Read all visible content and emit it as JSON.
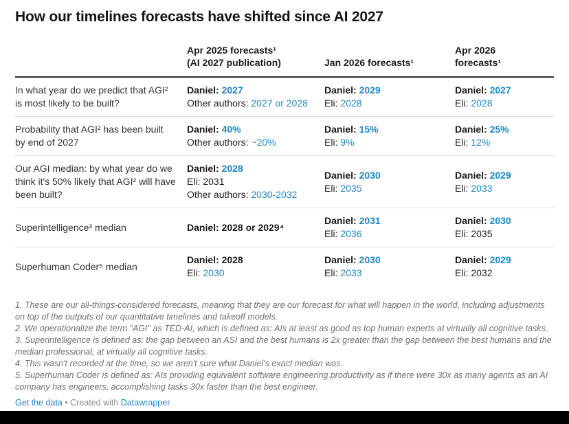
{
  "title": "How our timelines forecasts have shifted since AI 2027",
  "colors": {
    "accent_blue": "#1e87c4",
    "text_dark": "#1a1a1a",
    "muted_gray": "#6e6e6e",
    "row_separator": "#dddddd",
    "header_border": "#2e2e2e",
    "bottom_bar": "#000000"
  },
  "table": {
    "columns": [
      {
        "lines": []
      },
      {
        "lines": [
          "Apr 2025 forecasts¹",
          "(AI 2027 publication)"
        ]
      },
      {
        "lines": [
          "Jan 2026 forecasts¹"
        ]
      },
      {
        "lines": [
          "Apr 2026",
          "forecasts¹"
        ]
      }
    ],
    "rows": [
      {
        "question": "In what year do we predict that AGI² is most likely to be built?",
        "cells": [
          [
            [
              {
                "t": "Daniel: ",
                "b": true
              },
              {
                "t": "2027",
                "b": true,
                "blue": true
              }
            ],
            [
              {
                "t": "Other authors: "
              },
              {
                "t": "2027 or 2028",
                "blue": true
              }
            ]
          ],
          [
            [
              {
                "t": "Daniel: ",
                "b": true
              },
              {
                "t": "2029",
                "b": true,
                "blue": true
              }
            ],
            [
              {
                "t": "Eli: "
              },
              {
                "t": "2028",
                "blue": true
              }
            ]
          ],
          [
            [
              {
                "t": "Daniel: ",
                "b": true
              },
              {
                "t": "2027",
                "b": true,
                "blue": true
              }
            ],
            [
              {
                "t": "Eli: "
              },
              {
                "t": "2028",
                "blue": true
              }
            ]
          ]
        ]
      },
      {
        "question": "Probability that AGI² has been built by end of 2027",
        "cells": [
          [
            [
              {
                "t": "Daniel: ",
                "b": true
              },
              {
                "t": "40%",
                "b": true,
                "blue": true
              }
            ],
            [
              {
                "t": "Other authors: "
              },
              {
                "t": "~20%",
                "blue": true
              }
            ]
          ],
          [
            [
              {
                "t": "Daniel: ",
                "b": true
              },
              {
                "t": "15%",
                "b": true,
                "blue": true
              }
            ],
            [
              {
                "t": "Eli: "
              },
              {
                "t": "9%",
                "blue": true
              }
            ]
          ],
          [
            [
              {
                "t": "Daniel: ",
                "b": true
              },
              {
                "t": "25%",
                "b": true,
                "blue": true
              }
            ],
            [
              {
                "t": "Eli: "
              },
              {
                "t": "12%",
                "blue": true
              }
            ]
          ]
        ]
      },
      {
        "question": "Our AGI median: by what year do we think it's 50% likely that AGI² will have been built?",
        "cells": [
          [
            [
              {
                "t": "Daniel: ",
                "b": true
              },
              {
                "t": "2028",
                "b": true,
                "blue": true
              }
            ],
            [
              {
                "t": "Eli: 2031"
              }
            ],
            [
              {
                "t": "Other authors: "
              },
              {
                "t": "2030-2032",
                "blue": true
              }
            ]
          ],
          [
            [
              {
                "t": "Daniel: ",
                "b": true
              },
              {
                "t": "2030",
                "b": true,
                "blue": true
              }
            ],
            [
              {
                "t": "Eli: "
              },
              {
                "t": "2035",
                "blue": true
              }
            ]
          ],
          [
            [
              {
                "t": "Daniel: ",
                "b": true
              },
              {
                "t": "2029",
                "b": true,
                "blue": true
              }
            ],
            [
              {
                "t": "Eli: "
              },
              {
                "t": "2033",
                "blue": true
              }
            ]
          ]
        ]
      },
      {
        "question": "Superintelligence³ median",
        "cells": [
          [
            [
              {
                "t": "Daniel: 2028 or 2029⁴",
                "b": true
              }
            ]
          ],
          [
            [
              {
                "t": "Daniel: ",
                "b": true
              },
              {
                "t": "2031",
                "b": true,
                "blue": true
              }
            ],
            [
              {
                "t": "Eli: "
              },
              {
                "t": "2036",
                "blue": true
              }
            ]
          ],
          [
            [
              {
                "t": "Daniel: ",
                "b": true
              },
              {
                "t": "2030",
                "b": true,
                "blue": true
              }
            ],
            [
              {
                "t": "Eli: 2035"
              }
            ]
          ]
        ]
      },
      {
        "question": "Superhuman Coder⁵ median",
        "cells": [
          [
            [
              {
                "t": "Daniel: 2028",
                "b": true
              }
            ],
            [
              {
                "t": "Eli: "
              },
              {
                "t": "2030",
                "blue": true
              }
            ]
          ],
          [
            [
              {
                "t": "Daniel: ",
                "b": true
              },
              {
                "t": "2030",
                "b": true,
                "blue": true
              }
            ],
            [
              {
                "t": "Eli: "
              },
              {
                "t": "2033",
                "blue": true
              }
            ]
          ],
          [
            [
              {
                "t": "Daniel: ",
                "b": true
              },
              {
                "t": "2029",
                "b": true,
                "blue": true
              }
            ],
            [
              {
                "t": "Eli: 2032"
              }
            ]
          ]
        ]
      }
    ]
  },
  "footnotes": [
    "1. These are our all-things-considered forecasts, meaning that they are our forecast for what will happen in the world, including adjustments on top of the outputs of our quantitative timelines and takeoff models.",
    "2. We operationalize the term \"AGI\" as TED-AI, which is defined as: AIs at least as good as top human experts at virtually all cognitive tasks.",
    "3. Superintelligence is defined as: the gap between an ASI and the best humans is 2x greater than the gap between the best humans and the median professional, at virtually all cognitive tasks.",
    "4. This wasn't recorded at the time, so we aren't sure what Daniel's exact median was.",
    "5. Superhuman Coder is defined as: AIs providing equivalent software engineering productivity as if there were 30x as many agents as an AI company has engineers, accomplishing tasks 30x faster than the best engineer."
  ],
  "footer": {
    "get_data": "Get the data",
    "separator": " • ",
    "created_with": "Created with ",
    "datawrapper": "Datawrapper"
  },
  "chart_data": {
    "type": "table",
    "title": "How our timelines forecasts have shifted since AI 2027",
    "columns": [
      "",
      "Apr 2025 forecasts¹ (AI 2027 publication)",
      "Jan 2026 forecasts¹",
      "Apr 2026 forecasts¹"
    ],
    "rows": [
      [
        "In what year do we predict that AGI² is most likely to be built?",
        "Daniel: 2027; Other authors: 2027 or 2028",
        "Daniel: 2029; Eli: 2028",
        "Daniel: 2027; Eli: 2028"
      ],
      [
        "Probability that AGI² has been built by end of 2027",
        "Daniel: 40%; Other authors: ~20%",
        "Daniel: 15%; Eli: 9%",
        "Daniel: 25%; Eli: 12%"
      ],
      [
        "Our AGI median: by what year do we think it's 50% likely that AGI² will have been built?",
        "Daniel: 2028; Eli: 2031; Other authors: 2030-2032",
        "Daniel: 2030; Eli: 2035",
        "Daniel: 2029; Eli: 2033"
      ],
      [
        "Superintelligence³ median",
        "Daniel: 2028 or 2029⁴",
        "Daniel: 2031; Eli: 2036",
        "Daniel: 2030; Eli: 2035"
      ],
      [
        "Superhuman Coder⁵ median",
        "Daniel: 2028; Eli: 2030",
        "Daniel: 2030; Eli: 2033",
        "Daniel: 2029; Eli: 2032"
      ]
    ]
  }
}
